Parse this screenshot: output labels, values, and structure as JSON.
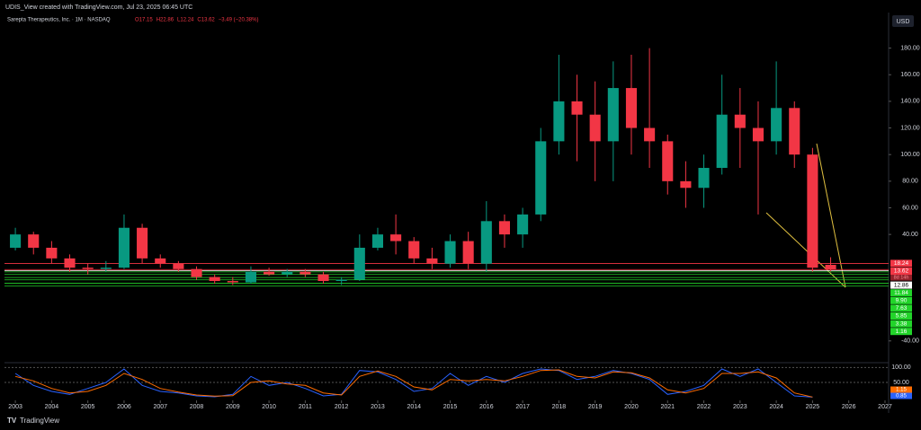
{
  "header": {
    "caption": "UDIS_View created with TradingView.com, Jul 23, 2025 06:45 UTC",
    "currency": "USD",
    "brand": "TradingView"
  },
  "chart_data": {
    "type": "candlestick",
    "title": "Sarepta Therapeutics, Inc. · 1M · NASDAQ",
    "ohlc_text": [
      "O17.15",
      "H22.86",
      "L12.24",
      "C13.62",
      "−3.49 (−20.38%)"
    ],
    "countdown": "8d 14h",
    "x": [
      2003.0,
      2003.5,
      2004.0,
      2004.5,
      2005.0,
      2005.5,
      2006.0,
      2006.5,
      2007.0,
      2007.5,
      2008.0,
      2008.5,
      2009.0,
      2009.5,
      2010.0,
      2010.5,
      2011.0,
      2011.5,
      2012.0,
      2012.5,
      2013.0,
      2013.5,
      2014.0,
      2014.5,
      2015.0,
      2015.5,
      2016.0,
      2016.5,
      2017.0,
      2017.5,
      2018.0,
      2018.5,
      2019.0,
      2019.5,
      2020.0,
      2020.5,
      2021.0,
      2021.5,
      2022.0,
      2022.5,
      2023.0,
      2023.5,
      2024.0,
      2024.5,
      2025.0,
      2025.5
    ],
    "open": [
      30,
      40,
      30,
      22,
      15,
      14,
      15,
      45,
      22,
      18,
      14,
      8,
      5,
      4,
      12,
      10,
      12,
      10,
      5,
      6,
      30,
      40,
      35,
      22,
      18,
      35,
      18,
      50,
      40,
      55,
      110,
      140,
      130,
      110,
      150,
      120,
      110,
      80,
      75,
      90,
      130,
      120,
      110,
      135,
      100,
      17.15
    ],
    "high": [
      45,
      42,
      35,
      25,
      18,
      20,
      55,
      48,
      25,
      20,
      16,
      10,
      8,
      16,
      15,
      14,
      14,
      12,
      8,
      40,
      45,
      55,
      38,
      30,
      40,
      42,
      65,
      55,
      60,
      120,
      175,
      160,
      155,
      170,
      175,
      180,
      115,
      95,
      100,
      160,
      150,
      140,
      170,
      140,
      105,
      22.86
    ],
    "low": [
      28,
      25,
      18,
      12,
      10,
      12,
      14,
      18,
      15,
      12,
      6,
      3,
      2,
      3,
      9,
      8,
      8,
      3,
      2,
      5,
      28,
      25,
      18,
      14,
      15,
      14,
      12,
      30,
      30,
      50,
      100,
      95,
      80,
      80,
      100,
      90,
      70,
      60,
      60,
      85,
      90,
      55,
      100,
      90,
      12,
      12.24
    ],
    "close": [
      40,
      30,
      22,
      15,
      14,
      15,
      45,
      22,
      18,
      14,
      8,
      5,
      4,
      12,
      10,
      12,
      10,
      5,
      6,
      30,
      40,
      35,
      22,
      18,
      35,
      18,
      50,
      40,
      55,
      110,
      140,
      130,
      110,
      150,
      120,
      110,
      80,
      75,
      90,
      130,
      120,
      110,
      135,
      100,
      15,
      13.62
    ],
    "up_color": "#089981",
    "down_color": "#f23645",
    "xlim": [
      2002.7,
      2027.1
    ],
    "xticks": [
      2003,
      2004,
      2005,
      2006,
      2007,
      2008,
      2009,
      2010,
      2011,
      2012,
      2013,
      2014,
      2015,
      2016,
      2017,
      2018,
      2019,
      2020,
      2021,
      2022,
      2023,
      2024,
      2025,
      2026,
      2027
    ],
    "ylim": [
      -55,
      204
    ],
    "yticks": [
      {
        "value": 180,
        "label": "180.00"
      },
      {
        "value": 160,
        "label": "160.00"
      },
      {
        "value": 140,
        "label": "140.00"
      },
      {
        "value": 120,
        "label": "120.00"
      },
      {
        "value": 100,
        "label": "100.00"
      },
      {
        "value": 80,
        "label": "80.00"
      },
      {
        "value": 60,
        "label": "60.00"
      },
      {
        "value": 40,
        "label": "40.00"
      },
      {
        "value": -40,
        "label": "-40.00"
      }
    ],
    "levels": [
      {
        "value": 18.24,
        "label": "18.24",
        "color": "#f23645"
      },
      {
        "value": 13.62,
        "label": "13.62",
        "color": "#f23645"
      },
      {
        "value": 12.86,
        "label": "12.86",
        "color": "#ffffff"
      },
      {
        "value": 11.84,
        "label": "11.84",
        "color": "#22d42a"
      },
      {
        "value": 9.9,
        "label": "9.90",
        "color": "#22d42a"
      },
      {
        "value": 7.63,
        "label": "7.63",
        "color": "#22d42a"
      },
      {
        "value": 5.85,
        "label": "5.85",
        "color": "#22d42a"
      },
      {
        "value": 3.38,
        "label": "3.38",
        "color": "#22d42a"
      },
      {
        "value": 1.16,
        "label": "1.16",
        "color": "#22d42a"
      }
    ],
    "oscillator": {
      "ylim": [
        -10,
        110
      ],
      "yticks": [
        {
          "value": 100,
          "label": "100.00"
        },
        {
          "value": 50,
          "label": "50.00"
        }
      ],
      "series": [
        {
          "color": "#2962ff",
          "values": [
            80,
            40,
            20,
            10,
            30,
            50,
            95,
            40,
            20,
            15,
            5,
            2,
            10,
            70,
            40,
            50,
            30,
            5,
            10,
            90,
            85,
            60,
            20,
            30,
            80,
            40,
            70,
            50,
            80,
            95,
            90,
            60,
            70,
            90,
            80,
            60,
            10,
            20,
            40,
            95,
            70,
            95,
            50,
            5,
            0.85
          ],
          "value_label": "0.85"
        },
        {
          "color": "#ff6d00",
          "values": [
            70,
            55,
            30,
            15,
            20,
            40,
            80,
            60,
            30,
            18,
            8,
            4,
            6,
            50,
            55,
            45,
            40,
            15,
            8,
            70,
            88,
            70,
            35,
            25,
            60,
            55,
            60,
            55,
            70,
            90,
            92,
            70,
            65,
            85,
            82,
            65,
            25,
            15,
            30,
            80,
            80,
            85,
            65,
            15,
            1.15
          ],
          "value_label": "1.15"
        }
      ]
    }
  }
}
